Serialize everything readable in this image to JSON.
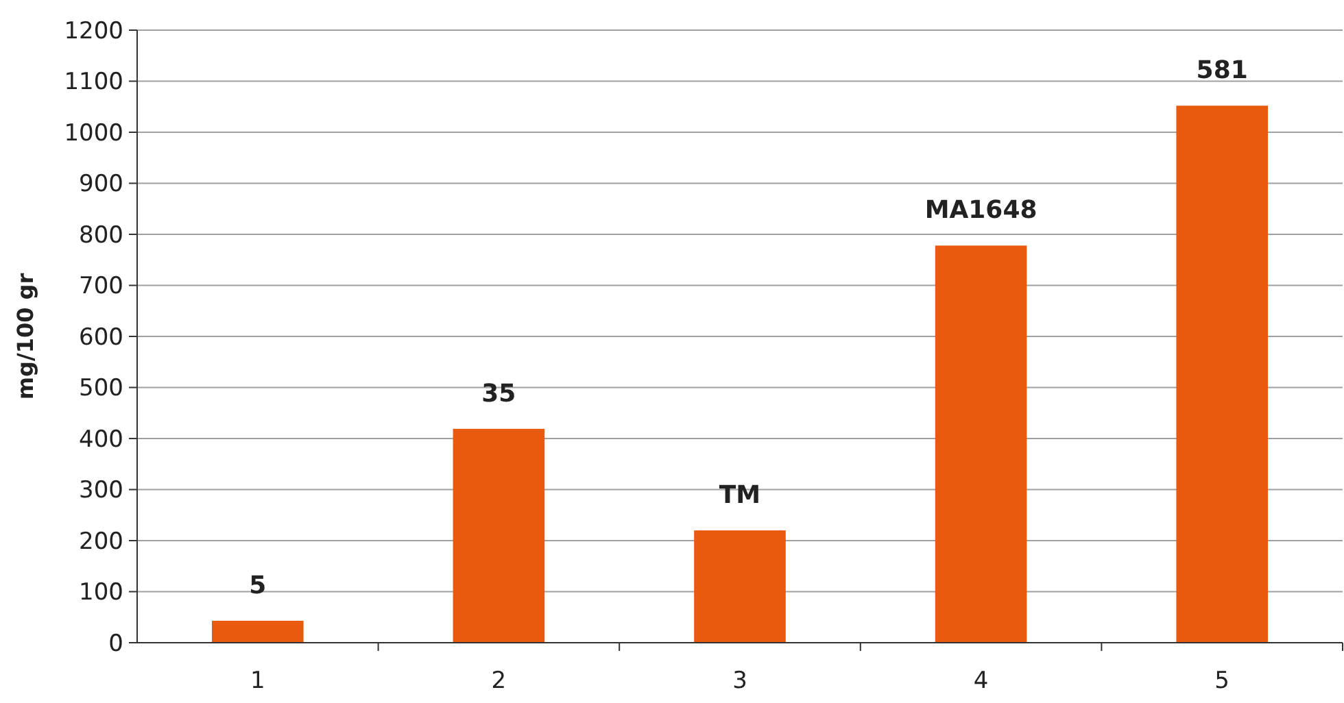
{
  "chart_data": {
    "type": "bar",
    "ylabel": "mg/100 gr",
    "categories": [
      "1",
      "2",
      "3",
      "4",
      "5"
    ],
    "values": [
      43,
      419,
      220,
      778,
      1052
    ],
    "color": "#e85b0e",
    "ylim": [
      0,
      1200
    ],
    "yticks": [
      0,
      100,
      200,
      300,
      400,
      500,
      600,
      700,
      800,
      900,
      1000,
      1100,
      1200
    ],
    "grid": "y",
    "annotations": [
      {
        "text": "5",
        "x": "1",
        "y": 43
      },
      {
        "text": "35",
        "x": "2",
        "y": 419
      },
      {
        "text": "TM",
        "x": "3",
        "y": 220
      },
      {
        "text": "MA1648",
        "x": "4",
        "y": 778
      },
      {
        "text": "581",
        "x": "5",
        "y": 1052
      }
    ]
  }
}
